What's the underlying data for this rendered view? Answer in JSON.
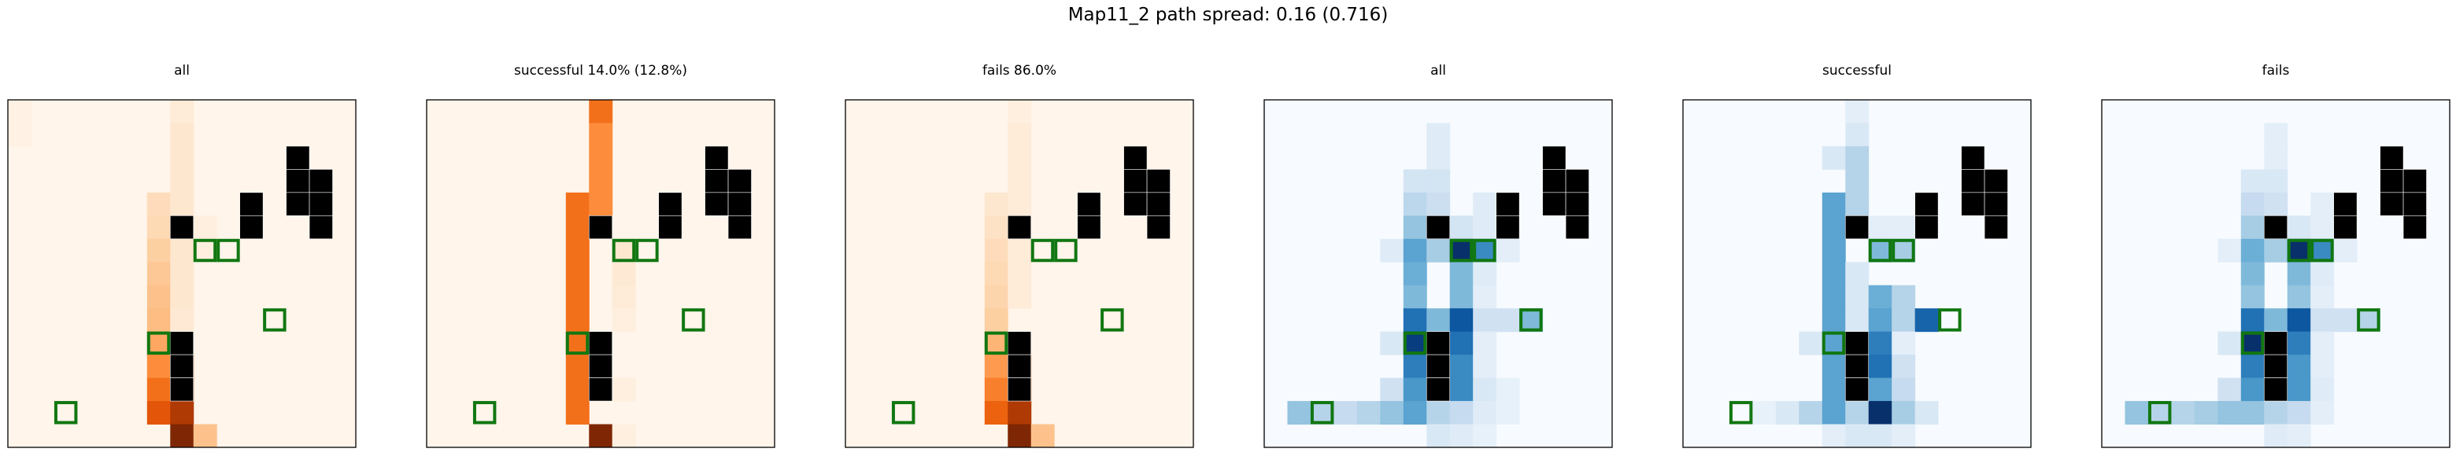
{
  "figure": {
    "suptitle": "Map11_2 path spread: 0.16 (0.716)"
  },
  "colors": {
    "obstacle": "#000000",
    "goal_outline": "#117711",
    "axes_frame": "#000000",
    "reds_scale": [
      "#fff5eb",
      "#fee6ce",
      "#fdd0a2",
      "#fdae6b",
      "#fd8d3c",
      "#f16913",
      "#d94801",
      "#a63603",
      "#7f2704"
    ],
    "blues_scale": [
      "#f7fbff",
      "#deebf7",
      "#c6dbef",
      "#9ecae1",
      "#6baed6",
      "#4292c6",
      "#2171b5",
      "#08519c",
      "#08306b"
    ]
  },
  "chart_data": {
    "type": "heatmap",
    "grid": {
      "rows": 15,
      "cols": 15
    },
    "obstacles": [
      [
        2,
        12
      ],
      [
        3,
        12
      ],
      [
        3,
        13
      ],
      [
        4,
        10
      ],
      [
        4,
        12
      ],
      [
        4,
        13
      ],
      [
        5,
        7
      ],
      [
        5,
        10
      ],
      [
        5,
        13
      ],
      [
        10,
        7
      ],
      [
        11,
        7
      ],
      [
        12,
        7
      ]
    ],
    "goals": [
      [
        6,
        8
      ],
      [
        6,
        9
      ],
      [
        9,
        11
      ],
      [
        10,
        6
      ],
      [
        13,
        2
      ]
    ],
    "panels": [
      {
        "title": "all",
        "cmap": "reds",
        "vmax": 1,
        "cells": [
          [
            0,
            7,
            0.08
          ],
          [
            1,
            7,
            0.12
          ],
          [
            2,
            7,
            0.12
          ],
          [
            3,
            7,
            0.12
          ],
          [
            4,
            6,
            0.18
          ],
          [
            4,
            7,
            0.12
          ],
          [
            5,
            6,
            0.2
          ],
          [
            5,
            8,
            0.05
          ],
          [
            6,
            6,
            0.25
          ],
          [
            6,
            7,
            0.12
          ],
          [
            6,
            8,
            0.05
          ],
          [
            7,
            6,
            0.28
          ],
          [
            7,
            7,
            0.12
          ],
          [
            8,
            6,
            0.3
          ],
          [
            8,
            7,
            0.12
          ],
          [
            9,
            6,
            0.32
          ],
          [
            9,
            7,
            0.1
          ],
          [
            10,
            6,
            0.4
          ],
          [
            11,
            6,
            0.5
          ],
          [
            11,
            7,
            0.6
          ],
          [
            12,
            6,
            0.6
          ],
          [
            12,
            7,
            0.7
          ],
          [
            13,
            6,
            0.7
          ],
          [
            13,
            7,
            0.85
          ],
          [
            14,
            7,
            1.0
          ],
          [
            14,
            8,
            0.3
          ],
          [
            0,
            0,
            0.03
          ],
          [
            1,
            0,
            0.03
          ]
        ]
      },
      {
        "title": "successful 14.0% (12.8%)",
        "cmap": "reds",
        "vmax": 1,
        "cells": [
          [
            0,
            7,
            0.6
          ],
          [
            1,
            7,
            0.5
          ],
          [
            2,
            7,
            0.5
          ],
          [
            3,
            7,
            0.5
          ],
          [
            4,
            6,
            0.6
          ],
          [
            4,
            7,
            0.5
          ],
          [
            5,
            6,
            0.6
          ],
          [
            6,
            6,
            0.6
          ],
          [
            6,
            8,
            0.12
          ],
          [
            7,
            6,
            0.6
          ],
          [
            7,
            8,
            0.1
          ],
          [
            8,
            6,
            0.6
          ],
          [
            8,
            8,
            0.08
          ],
          [
            9,
            6,
            0.6
          ],
          [
            9,
            8,
            0.05
          ],
          [
            10,
            6,
            0.6
          ],
          [
            11,
            6,
            0.6
          ],
          [
            12,
            6,
            0.6
          ],
          [
            13,
            6,
            0.6
          ],
          [
            14,
            7,
            1.0
          ],
          [
            12,
            8,
            0.05
          ],
          [
            14,
            8,
            0.05
          ]
        ]
      },
      {
        "title": "fails 86.0%",
        "cmap": "reds",
        "vmax": 1,
        "cells": [
          [
            0,
            7,
            0.05
          ],
          [
            1,
            7,
            0.08
          ],
          [
            2,
            7,
            0.08
          ],
          [
            3,
            7,
            0.08
          ],
          [
            4,
            6,
            0.12
          ],
          [
            4,
            7,
            0.08
          ],
          [
            5,
            6,
            0.15
          ],
          [
            6,
            6,
            0.18
          ],
          [
            6,
            7,
            0.08
          ],
          [
            7,
            6,
            0.2
          ],
          [
            7,
            7,
            0.08
          ],
          [
            8,
            6,
            0.22
          ],
          [
            8,
            7,
            0.08
          ],
          [
            9,
            6,
            0.25
          ],
          [
            10,
            6,
            0.35
          ],
          [
            11,
            6,
            0.45
          ],
          [
            11,
            7,
            0.55
          ],
          [
            12,
            6,
            0.55
          ],
          [
            12,
            7,
            0.7
          ],
          [
            13,
            6,
            0.65
          ],
          [
            13,
            7,
            0.85
          ],
          [
            14,
            7,
            1.0
          ],
          [
            14,
            8,
            0.3
          ]
        ]
      },
      {
        "title": "all",
        "cmap": "blues",
        "vmax": 1,
        "cells": [
          [
            1,
            7,
            0.12
          ],
          [
            2,
            7,
            0.12
          ],
          [
            3,
            6,
            0.18
          ],
          [
            3,
            7,
            0.18
          ],
          [
            4,
            6,
            0.28
          ],
          [
            4,
            7,
            0.22
          ],
          [
            4,
            9,
            0.12
          ],
          [
            5,
            6,
            0.4
          ],
          [
            5,
            8,
            0.18
          ],
          [
            5,
            9,
            0.12
          ],
          [
            6,
            5,
            0.12
          ],
          [
            6,
            6,
            0.55
          ],
          [
            6,
            7,
            0.35
          ],
          [
            6,
            8,
            1.0
          ],
          [
            6,
            9,
            0.65
          ],
          [
            6,
            10,
            0.1
          ],
          [
            7,
            6,
            0.5
          ],
          [
            7,
            8,
            0.45
          ],
          [
            7,
            9,
            0.12
          ],
          [
            8,
            6,
            0.45
          ],
          [
            8,
            8,
            0.45
          ],
          [
            8,
            9,
            0.1
          ],
          [
            9,
            6,
            0.75
          ],
          [
            9,
            7,
            0.45
          ],
          [
            9,
            8,
            0.85
          ],
          [
            9,
            9,
            0.2
          ],
          [
            9,
            10,
            0.2
          ],
          [
            9,
            11,
            0.45
          ],
          [
            10,
            5,
            0.15
          ],
          [
            10,
            6,
            0.95
          ],
          [
            10,
            8,
            0.75
          ],
          [
            10,
            9,
            0.1
          ],
          [
            11,
            6,
            0.7
          ],
          [
            11,
            8,
            0.65
          ],
          [
            11,
            9,
            0.1
          ],
          [
            12,
            5,
            0.2
          ],
          [
            12,
            6,
            0.6
          ],
          [
            12,
            7,
            0.6
          ],
          [
            12,
            8,
            0.65
          ],
          [
            12,
            9,
            0.15
          ],
          [
            12,
            10,
            0.08
          ],
          [
            13,
            1,
            0.4
          ],
          [
            13,
            2,
            0.3
          ],
          [
            13,
            3,
            0.25
          ],
          [
            13,
            4,
            0.3
          ],
          [
            13,
            5,
            0.4
          ],
          [
            13,
            6,
            0.55
          ],
          [
            13,
            7,
            0.3
          ],
          [
            13,
            8,
            0.25
          ],
          [
            13,
            9,
            0.12
          ],
          [
            13,
            10,
            0.08
          ],
          [
            14,
            7,
            0.15
          ],
          [
            14,
            8,
            0.12
          ],
          [
            14,
            9,
            0.08
          ]
        ]
      },
      {
        "title": "successful",
        "cmap": "blues",
        "vmax": 1,
        "cells": [
          [
            0,
            7,
            0.1
          ],
          [
            1,
            7,
            0.15
          ],
          [
            2,
            6,
            0.15
          ],
          [
            2,
            7,
            0.3
          ],
          [
            3,
            7,
            0.3
          ],
          [
            4,
            6,
            0.55
          ],
          [
            4,
            7,
            0.3
          ],
          [
            5,
            6,
            0.55
          ],
          [
            5,
            8,
            0.1
          ],
          [
            5,
            9,
            0.1
          ],
          [
            6,
            6,
            0.55
          ],
          [
            6,
            8,
            0.45
          ],
          [
            6,
            9,
            0.35
          ],
          [
            7,
            6,
            0.55
          ],
          [
            7,
            7,
            0.15
          ],
          [
            8,
            6,
            0.55
          ],
          [
            8,
            7,
            0.15
          ],
          [
            8,
            8,
            0.5
          ],
          [
            8,
            9,
            0.3
          ],
          [
            9,
            6,
            0.55
          ],
          [
            9,
            7,
            0.15
          ],
          [
            9,
            8,
            0.55
          ],
          [
            9,
            9,
            0.3
          ],
          [
            9,
            10,
            0.8
          ],
          [
            10,
            5,
            0.15
          ],
          [
            10,
            6,
            0.55
          ],
          [
            10,
            8,
            0.7
          ],
          [
            10,
            9,
            0.1
          ],
          [
            11,
            6,
            0.55
          ],
          [
            11,
            8,
            0.75
          ],
          [
            11,
            9,
            0.2
          ],
          [
            12,
            6,
            0.55
          ],
          [
            12,
            7,
            0.35
          ],
          [
            12,
            8,
            0.55
          ],
          [
            12,
            9,
            0.25
          ],
          [
            13,
            3,
            0.08
          ],
          [
            13,
            4,
            0.15
          ],
          [
            13,
            5,
            0.3
          ],
          [
            13,
            6,
            0.55
          ],
          [
            13,
            7,
            0.3
          ],
          [
            13,
            8,
            1.0
          ],
          [
            13,
            9,
            0.35
          ],
          [
            13,
            10,
            0.15
          ],
          [
            14,
            6,
            0.1
          ],
          [
            14,
            7,
            0.15
          ],
          [
            14,
            8,
            0.15
          ],
          [
            14,
            9,
            0.1
          ]
        ]
      },
      {
        "title": "fails",
        "cmap": "blues",
        "vmax": 1,
        "cells": [
          [
            1,
            7,
            0.1
          ],
          [
            2,
            7,
            0.1
          ],
          [
            3,
            6,
            0.15
          ],
          [
            3,
            7,
            0.15
          ],
          [
            4,
            6,
            0.25
          ],
          [
            4,
            7,
            0.2
          ],
          [
            4,
            9,
            0.1
          ],
          [
            5,
            6,
            0.35
          ],
          [
            5,
            8,
            0.15
          ],
          [
            5,
            9,
            0.1
          ],
          [
            6,
            5,
            0.1
          ],
          [
            6,
            6,
            0.5
          ],
          [
            6,
            7,
            0.35
          ],
          [
            6,
            8,
            1.0
          ],
          [
            6,
            9,
            0.65
          ],
          [
            6,
            10,
            0.1
          ],
          [
            7,
            6,
            0.45
          ],
          [
            7,
            8,
            0.45
          ],
          [
            7,
            9,
            0.12
          ],
          [
            8,
            6,
            0.4
          ],
          [
            8,
            8,
            0.4
          ],
          [
            8,
            9,
            0.1
          ],
          [
            9,
            6,
            0.75
          ],
          [
            9,
            7,
            0.45
          ],
          [
            9,
            8,
            0.85
          ],
          [
            9,
            9,
            0.2
          ],
          [
            9,
            10,
            0.2
          ],
          [
            9,
            11,
            0.3
          ],
          [
            10,
            5,
            0.15
          ],
          [
            10,
            6,
            1.0
          ],
          [
            10,
            8,
            0.7
          ],
          [
            10,
            9,
            0.1
          ],
          [
            11,
            6,
            0.7
          ],
          [
            11,
            8,
            0.6
          ],
          [
            11,
            9,
            0.1
          ],
          [
            12,
            5,
            0.2
          ],
          [
            12,
            6,
            0.6
          ],
          [
            12,
            7,
            0.6
          ],
          [
            12,
            8,
            0.6
          ],
          [
            12,
            9,
            0.12
          ],
          [
            13,
            1,
            0.4
          ],
          [
            13,
            2,
            0.3
          ],
          [
            13,
            3,
            0.3
          ],
          [
            13,
            4,
            0.35
          ],
          [
            13,
            5,
            0.4
          ],
          [
            13,
            6,
            0.4
          ],
          [
            13,
            7,
            0.3
          ],
          [
            13,
            8,
            0.25
          ],
          [
            13,
            9,
            0.1
          ],
          [
            14,
            7,
            0.12
          ],
          [
            14,
            8,
            0.1
          ]
        ]
      }
    ]
  }
}
